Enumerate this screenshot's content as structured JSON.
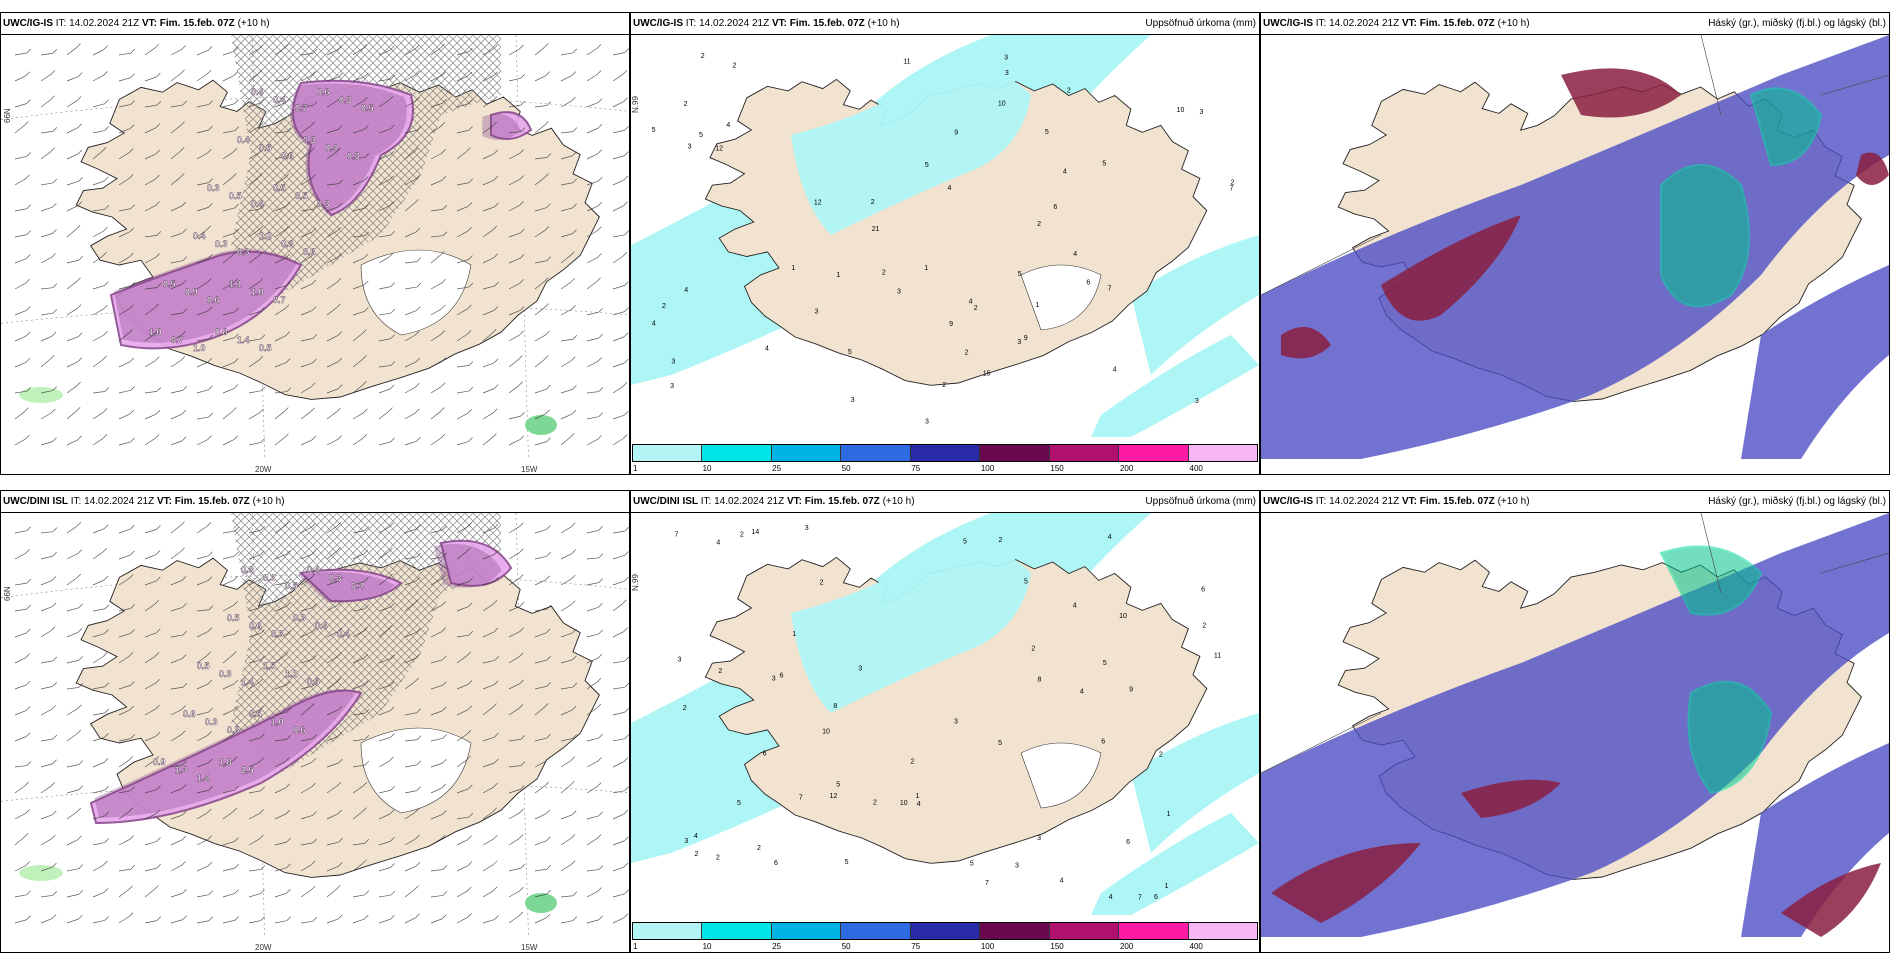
{
  "panels": [
    {
      "model": "UWC/IG-IS",
      "it_label": "IT:",
      "it_value": "14.02.2024 21Z",
      "vt_label": "VT:",
      "vt_value": "Fim. 15.feb. 07Z",
      "lead": "(+10 h)",
      "right_title": "",
      "type": "wind-precip",
      "axis": {
        "lat": "66N",
        "lon1": "20W",
        "lon2": "15W"
      },
      "labels": [
        "0.4",
        "0.4",
        "0.7",
        "0.6",
        "0.3",
        "0.5",
        "0.4",
        "0.5",
        "0.6",
        "0.3",
        "0.4",
        "0.3",
        "0.3",
        "0.5",
        "0.4",
        "0.5",
        "0.5",
        "0.3",
        "0.4",
        "0.3",
        "0.3",
        "1.2",
        "0.3",
        "0.6",
        "0.5",
        "0.9",
        "0.6",
        "1.1",
        "1.0",
        "0.7",
        "1.0",
        "0.7",
        "1.0",
        "0.8",
        "1.4",
        "0.5"
      ]
    },
    {
      "model": "UWC/IG-IS",
      "it_label": "IT:",
      "it_value": "14.02.2024 21Z",
      "vt_label": "VT:",
      "vt_value": "Fim. 15.feb. 07Z",
      "lead": "(+10 h)",
      "right_title": "Uppsöfnuð úrkoma (mm)",
      "type": "accum",
      "axis": {
        "lat": "N.99"
      },
      "labels": [
        "3",
        "2",
        "3",
        "2",
        "2",
        "3",
        "2",
        "10",
        "4",
        "5",
        "5",
        "9",
        "12",
        "11",
        "10",
        "4",
        "5",
        "4",
        "5",
        "5",
        "1",
        "3",
        "7",
        "6",
        "4",
        "7",
        "3",
        "5",
        "9",
        "4",
        "6",
        "2",
        "2",
        "21",
        "15",
        "12",
        "5",
        "9",
        "4",
        "3",
        "1",
        "2",
        "4",
        "3",
        "2",
        "2",
        "1",
        "3",
        "4",
        "3",
        "2",
        "3",
        "1",
        "2",
        "4",
        "3",
        "3",
        "2"
      ],
      "legend": [
        "1",
        "10",
        "25",
        "50",
        "75",
        "100",
        "150",
        "200",
        "400"
      ]
    },
    {
      "model": "UWC/IG-IS",
      "it_label": "IT:",
      "it_value": "14.02.2024 21Z",
      "vt_label": "VT:",
      "vt_value": "Fim. 15.feb. 07Z",
      "lead": "(+10 h)",
      "right_title": "Háský (gr.), miðský (fj.bl.) og lágský (bl.)",
      "type": "clouds"
    },
    {
      "model": "UWC/DINI ISL",
      "it_label": "IT:",
      "it_value": "14.02.2024 21Z",
      "vt_label": "VT:",
      "vt_value": "Fim. 15.feb. 07Z",
      "lead": "(+10 h)",
      "right_title": "",
      "type": "wind-precip",
      "axis": {
        "lat": "66N",
        "lon1": "20W",
        "lon2": "15W"
      },
      "labels": [
        "0.3",
        "0.3",
        "0.5",
        "0.4",
        "0.3",
        "0.4",
        "0.5",
        "0.6",
        "0.3",
        "0.3",
        "0.4",
        "0.4",
        "0.5",
        "0.3",
        "1.4",
        "1.5",
        "1.2",
        "0.5",
        "0.6",
        "0.3",
        "0.8",
        "0.5",
        "1.0",
        "0.6",
        "0.9",
        "1.3",
        "1.4",
        "1.8",
        "2.5"
      ]
    },
    {
      "model": "UWC/DINI ISL",
      "it_label": "IT:",
      "it_value": "14.02.2024 21Z",
      "vt_label": "VT:",
      "vt_value": "Fim. 15.feb. 07Z",
      "lead": "(+10 h)",
      "right_title": "Uppsöfnuð úrkoma (mm)",
      "type": "accum",
      "axis": {
        "lat": "N.99"
      },
      "labels": [
        "2",
        "3",
        "2",
        "6",
        "6",
        "2",
        "10",
        "10",
        "12",
        "4",
        "9",
        "5",
        "7",
        "4",
        "8",
        "3",
        "3",
        "11",
        "6",
        "3",
        "7",
        "6",
        "3",
        "7",
        "6",
        "8",
        "5",
        "4",
        "10",
        "3",
        "5",
        "2",
        "2",
        "1",
        "4",
        "3",
        "2",
        "14",
        "6",
        "5",
        "2",
        "1",
        "2",
        "4",
        "4",
        "2",
        "1",
        "1",
        "3",
        "5",
        "7",
        "5",
        "5",
        "4",
        "2",
        "2",
        "6",
        "4",
        "5",
        "2",
        "2"
      ],
      "legend": [
        "1",
        "10",
        "25",
        "50",
        "75",
        "100",
        "150",
        "200",
        "400"
      ]
    },
    {
      "model": "UWC/IG-IS",
      "it_label": "IT:",
      "it_value": "14.02.2024 21Z",
      "vt_label": "VT:",
      "vt_value": "Fim. 15.feb. 07Z",
      "lead": "(+10 h)",
      "right_title": "Háský (gr.), miðský (fj.bl.) og lágský (bl.)",
      "type": "clouds"
    }
  ],
  "colors": {
    "land": "#f2e3d0",
    "precip_light": "#e7a6ec",
    "precip_heavy": "#8a4a8e",
    "accum_low": "#aef6f6",
    "high_cloud": "#8a1f3f",
    "mid_cloud": "#00c48c",
    "low_cloud": "#4a4ac4",
    "legend": [
      "#b4f6f6",
      "#00e5e5",
      "#00b3e6",
      "#2e6ae0",
      "#2a2aa8",
      "#6a0a4e",
      "#b0106e",
      "#ff1aa6",
      "#f8b6f2"
    ]
  }
}
